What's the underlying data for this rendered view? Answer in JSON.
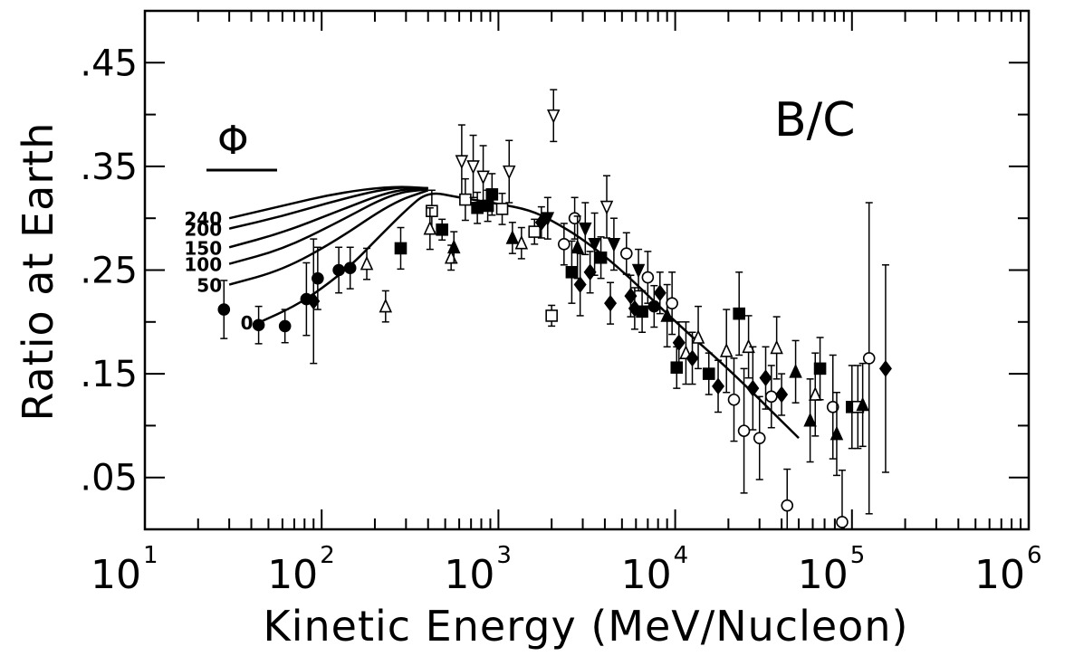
{
  "chart_data": {
    "type": "scatter",
    "title": "B/C",
    "xlabel": "Kinetic Energy (MeV/Nucleon)",
    "ylabel": "Ratio at Earth",
    "x_scale": "log",
    "xlim": [
      10,
      1000000
    ],
    "ylim": [
      0,
      0.5
    ],
    "x_ticks": [
      {
        "base": "10",
        "exp": "1",
        "value": 10
      },
      {
        "base": "10",
        "exp": "2",
        "value": 100
      },
      {
        "base": "10",
        "exp": "3",
        "value": 1000
      },
      {
        "base": "10",
        "exp": "4",
        "value": 10000
      },
      {
        "base": "10",
        "exp": "5",
        "value": 100000
      },
      {
        "base": "10",
        "exp": "6",
        "value": 1000000
      }
    ],
    "y_ticks": [
      {
        "label": ".05",
        "value": 0.05
      },
      {
        "label": ".15",
        "value": 0.15
      },
      {
        "label": ".25",
        "value": 0.25
      },
      {
        "label": ".35",
        "value": 0.35
      },
      {
        "label": ".45",
        "value": 0.45
      }
    ],
    "legend": {
      "symbol": "Φ",
      "position": "left"
    },
    "curves": [
      {
        "name": "240",
        "points": [
          [
            30,
            0.3
          ],
          [
            60,
            0.312
          ],
          [
            120,
            0.324
          ],
          [
            250,
            0.331
          ],
          [
            400,
            0.329
          ]
        ]
      },
      {
        "name": "200",
        "points": [
          [
            30,
            0.29
          ],
          [
            60,
            0.302
          ],
          [
            120,
            0.317
          ],
          [
            250,
            0.33
          ],
          [
            400,
            0.329
          ]
        ]
      },
      {
        "name": "150",
        "points": [
          [
            30,
            0.272
          ],
          [
            60,
            0.286
          ],
          [
            120,
            0.306
          ],
          [
            250,
            0.327
          ],
          [
            400,
            0.329
          ]
        ]
      },
      {
        "name": "100",
        "points": [
          [
            30,
            0.256
          ],
          [
            60,
            0.27
          ],
          [
            120,
            0.295
          ],
          [
            250,
            0.324
          ],
          [
            400,
            0.328
          ]
        ]
      },
      {
        "name": "50",
        "points": [
          [
            30,
            0.236
          ],
          [
            60,
            0.25
          ],
          [
            120,
            0.278
          ],
          [
            250,
            0.315
          ],
          [
            400,
            0.327
          ]
        ]
      },
      {
        "name": "0",
        "points": [
          [
            45,
            0.2
          ],
          [
            70,
            0.215
          ],
          [
            100,
            0.232
          ],
          [
            150,
            0.256
          ],
          [
            200,
            0.278
          ],
          [
            300,
            0.308
          ],
          [
            400,
            0.326
          ],
          [
            600,
            0.32
          ],
          [
            1000,
            0.314
          ],
          [
            1500,
            0.308
          ],
          [
            2000,
            0.298
          ],
          [
            3000,
            0.28
          ],
          [
            5000,
            0.25
          ],
          [
            10000,
            0.2
          ],
          [
            20000,
            0.155
          ],
          [
            50000,
            0.088
          ]
        ]
      }
    ],
    "points": [
      {
        "x": 28,
        "y": 0.212,
        "e": 0.028,
        "m": "filled-circle"
      },
      {
        "x": 44,
        "y": 0.197,
        "e": 0.018,
        "m": "filled-circle"
      },
      {
        "x": 62,
        "y": 0.196,
        "e": 0.016,
        "m": "filled-circle"
      },
      {
        "x": 82,
        "y": 0.222,
        "e": 0.035,
        "m": "filled-circle"
      },
      {
        "x": 95,
        "y": 0.242,
        "e": 0.03,
        "m": "filled-circle"
      },
      {
        "x": 125,
        "y": 0.25,
        "e": 0.022,
        "m": "filled-circle"
      },
      {
        "x": 145,
        "y": 0.252,
        "e": 0.02,
        "m": "filled-circle"
      },
      {
        "x": 90,
        "y": 0.22,
        "e": 0.06,
        "m": "filled-diamond"
      },
      {
        "x": 180,
        "y": 0.256,
        "e": 0.015,
        "m": "open-triangle"
      },
      {
        "x": 230,
        "y": 0.215,
        "e": 0.015,
        "m": "open-triangle"
      },
      {
        "x": 280,
        "y": 0.271,
        "e": 0.02,
        "m": "filled-square"
      },
      {
        "x": 420,
        "y": 0.307,
        "e": 0.02,
        "m": "open-square"
      },
      {
        "x": 410,
        "y": 0.29,
        "e": 0.02,
        "m": "open-triangle"
      },
      {
        "x": 480,
        "y": 0.289,
        "e": 0.01,
        "m": "filled-square"
      },
      {
        "x": 540,
        "y": 0.262,
        "e": 0.012,
        "m": "open-triangle"
      },
      {
        "x": 560,
        "y": 0.272,
        "e": 0.015,
        "m": "filled-triangle"
      },
      {
        "x": 620,
        "y": 0.355,
        "e": 0.035,
        "m": "open-triangle-down"
      },
      {
        "x": 650,
        "y": 0.318,
        "e": 0.02,
        "m": "open-square"
      },
      {
        "x": 720,
        "y": 0.35,
        "e": 0.03,
        "m": "open-triangle-down"
      },
      {
        "x": 760,
        "y": 0.31,
        "e": 0.015,
        "m": "filled-square"
      },
      {
        "x": 820,
        "y": 0.34,
        "e": 0.03,
        "m": "open-triangle-down"
      },
      {
        "x": 870,
        "y": 0.312,
        "e": 0.015,
        "m": "filled-square"
      },
      {
        "x": 920,
        "y": 0.323,
        "e": 0.02,
        "m": "filled-square"
      },
      {
        "x": 1050,
        "y": 0.309,
        "e": 0.015,
        "m": "open-square"
      },
      {
        "x": 1150,
        "y": 0.345,
        "e": 0.03,
        "m": "open-triangle-down"
      },
      {
        "x": 1200,
        "y": 0.281,
        "e": 0.015,
        "m": "filled-triangle"
      },
      {
        "x": 1350,
        "y": 0.276,
        "e": 0.015,
        "m": "open-triangle"
      },
      {
        "x": 1600,
        "y": 0.287,
        "e": 0.012,
        "m": "open-square"
      },
      {
        "x": 1750,
        "y": 0.296,
        "e": 0.015,
        "m": "filled-diamond"
      },
      {
        "x": 1900,
        "y": 0.3,
        "e": 0.02,
        "m": "filled-triangle-down"
      },
      {
        "x": 2000,
        "y": 0.206,
        "e": 0.01,
        "m": "open-square"
      },
      {
        "x": 2050,
        "y": 0.399,
        "e": 0.025,
        "m": "open-triangle-down"
      },
      {
        "x": 2350,
        "y": 0.275,
        "e": 0.02,
        "m": "open-circle"
      },
      {
        "x": 2600,
        "y": 0.248,
        "e": 0.03,
        "m": "filled-square"
      },
      {
        "x": 2700,
        "y": 0.3,
        "e": 0.02,
        "m": "open-circle"
      },
      {
        "x": 2800,
        "y": 0.272,
        "e": 0.03,
        "m": "filled-triangle"
      },
      {
        "x": 2900,
        "y": 0.236,
        "e": 0.03,
        "m": "filled-diamond"
      },
      {
        "x": 3100,
        "y": 0.29,
        "e": 0.025,
        "m": "filled-triangle-down"
      },
      {
        "x": 3300,
        "y": 0.248,
        "e": 0.02,
        "m": "filled-diamond"
      },
      {
        "x": 3500,
        "y": 0.275,
        "e": 0.03,
        "m": "filled-triangle-down"
      },
      {
        "x": 3800,
        "y": 0.262,
        "e": 0.02,
        "m": "filled-square"
      },
      {
        "x": 4100,
        "y": 0.311,
        "e": 0.03,
        "m": "open-triangle-down"
      },
      {
        "x": 4300,
        "y": 0.218,
        "e": 0.02,
        "m": "filled-diamond"
      },
      {
        "x": 4500,
        "y": 0.275,
        "e": 0.025,
        "m": "filled-triangle-down"
      },
      {
        "x": 5300,
        "y": 0.266,
        "e": 0.02,
        "m": "open-circle"
      },
      {
        "x": 5600,
        "y": 0.225,
        "e": 0.02,
        "m": "filled-diamond"
      },
      {
        "x": 5900,
        "y": 0.213,
        "e": 0.02,
        "m": "filled-diamond"
      },
      {
        "x": 6200,
        "y": 0.25,
        "e": 0.02,
        "m": "filled-triangle-down"
      },
      {
        "x": 6500,
        "y": 0.21,
        "e": 0.02,
        "m": "filled-square"
      },
      {
        "x": 7000,
        "y": 0.243,
        "e": 0.025,
        "m": "open-circle"
      },
      {
        "x": 7600,
        "y": 0.215,
        "e": 0.02,
        "m": "filled-circle"
      },
      {
        "x": 8200,
        "y": 0.228,
        "e": 0.02,
        "m": "filled-diamond"
      },
      {
        "x": 9000,
        "y": 0.206,
        "e": 0.03,
        "m": "filled-triangle"
      },
      {
        "x": 9600,
        "y": 0.218,
        "e": 0.03,
        "m": "open-circle"
      },
      {
        "x": 10200,
        "y": 0.156,
        "e": 0.02,
        "m": "filled-square"
      },
      {
        "x": 10500,
        "y": 0.18,
        "e": 0.02,
        "m": "filled-diamond"
      },
      {
        "x": 11500,
        "y": 0.17,
        "e": 0.03,
        "m": "open-triangle"
      },
      {
        "x": 12500,
        "y": 0.165,
        "e": 0.025,
        "m": "filled-diamond"
      },
      {
        "x": 13500,
        "y": 0.185,
        "e": 0.03,
        "m": "open-triangle"
      },
      {
        "x": 15500,
        "y": 0.15,
        "e": 0.02,
        "m": "filled-square"
      },
      {
        "x": 17500,
        "y": 0.138,
        "e": 0.025,
        "m": "filled-diamond"
      },
      {
        "x": 19500,
        "y": 0.172,
        "e": 0.04,
        "m": "open-triangle"
      },
      {
        "x": 21500,
        "y": 0.125,
        "e": 0.04,
        "m": "open-circle"
      },
      {
        "x": 23000,
        "y": 0.208,
        "e": 0.04,
        "m": "filled-square"
      },
      {
        "x": 24500,
        "y": 0.095,
        "e": 0.06,
        "m": "open-circle"
      },
      {
        "x": 26000,
        "y": 0.176,
        "e": 0.03,
        "m": "open-triangle"
      },
      {
        "x": 27500,
        "y": 0.136,
        "e": 0.04,
        "m": "filled-diamond"
      },
      {
        "x": 30000,
        "y": 0.088,
        "e": 0.04,
        "m": "open-circle"
      },
      {
        "x": 32500,
        "y": 0.146,
        "e": 0.03,
        "m": "filled-diamond"
      },
      {
        "x": 35000,
        "y": 0.128,
        "e": 0.03,
        "m": "open-circle"
      },
      {
        "x": 37500,
        "y": 0.175,
        "e": 0.03,
        "m": "open-triangle"
      },
      {
        "x": 40000,
        "y": 0.13,
        "e": 0.02,
        "m": "filled-diamond"
      },
      {
        "x": 43000,
        "y": 0.023,
        "e": 0.035,
        "m": "open-circle"
      },
      {
        "x": 48000,
        "y": 0.152,
        "e": 0.03,
        "m": "filled-triangle"
      },
      {
        "x": 58000,
        "y": 0.105,
        "e": 0.04,
        "m": "filled-triangle"
      },
      {
        "x": 62000,
        "y": 0.13,
        "e": 0.04,
        "m": "open-triangle"
      },
      {
        "x": 66000,
        "y": 0.155,
        "e": 0.03,
        "m": "filled-square"
      },
      {
        "x": 78000,
        "y": 0.118,
        "e": 0.05,
        "m": "open-circle"
      },
      {
        "x": 82000,
        "y": 0.092,
        "e": 0.04,
        "m": "filled-triangle"
      },
      {
        "x": 88000,
        "y": 0.007,
        "e": 0.05,
        "m": "open-circle"
      },
      {
        "x": 100000,
        "y": 0.118,
        "e": 0.04,
        "m": "filled-square"
      },
      {
        "x": 108000,
        "y": 0.118,
        "e": 0.04,
        "m": "open-square"
      },
      {
        "x": 115000,
        "y": 0.12,
        "e": 0.04,
        "m": "filled-triangle"
      },
      {
        "x": 125000,
        "y": 0.165,
        "e": 0.15,
        "m": "open-circle"
      },
      {
        "x": 155000,
        "y": 0.155,
        "e": 0.1,
        "m": "filled-diamond"
      }
    ]
  }
}
